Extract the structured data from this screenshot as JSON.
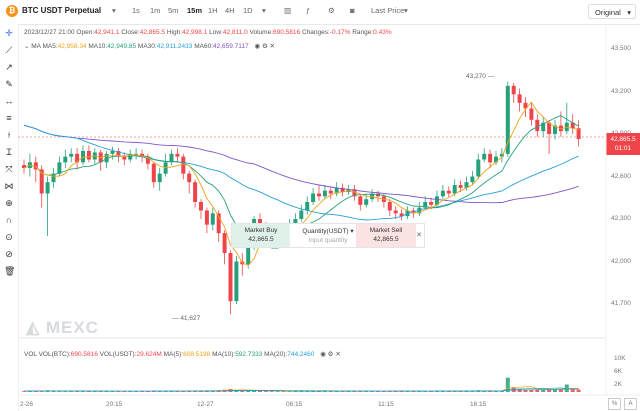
{
  "toolbar": {
    "symbol": "BTC USDT Perpetual",
    "coin_glyph": "₿",
    "intervals": [
      "1s",
      "1m",
      "5m",
      "15m",
      "1H",
      "4H",
      "1D"
    ],
    "active_interval": "15m",
    "last_price_label": "Last Price",
    "original_label": "Original"
  },
  "info": {
    "datetime": "2023/12/27 21:00",
    "open_label": "Open:",
    "open": "42,941.1",
    "close_label": "Close:",
    "close": "42,865.5",
    "high_label": "High:",
    "high": "42,998.1",
    "low_label": "Low:",
    "low": "42,811.0",
    "volume_label": "Volume:",
    "volume": "690.5816",
    "changes_label": "Changes:",
    "changes": "-0.17%",
    "range_label": "Range:",
    "range": "0.43%"
  },
  "ma": {
    "label": "MA",
    "ma5_label": "MA5:",
    "ma5": "42,958.34",
    "ma10_label": "MA10:",
    "ma10": "42,949.85",
    "ma30_label": "MA30:",
    "ma30": "42,911.2433",
    "ma60_label": "MA60:",
    "ma60": "42,659.7117"
  },
  "price_axis": [
    "43,500",
    "43,200",
    "42,900",
    "42,600",
    "42,300",
    "42,000",
    "41,700"
  ],
  "price_tag": {
    "price": "42,865.5",
    "countdown": "01:01"
  },
  "high_marker": "43,270",
  "low_marker": "41,627",
  "trade_panel": {
    "buy_label": "Market Buy",
    "buy_price": "42,865.5",
    "qty_label": "Quantity(USDT)",
    "qty_placeholder": "Input quantity",
    "sell_label": "Market Sell",
    "sell_price": "42,865.5",
    "close_glyph": "✕"
  },
  "watermark": "MEXC",
  "vol": {
    "label": "VOL",
    "btc_label": "VOL(BTC):",
    "btc": "690.5816",
    "usdt_label": "VOL(USDT):",
    "usdt": "29.624M",
    "ma5_label": "MA(5):",
    "ma5": "608.5198",
    "ma10_label": "MA(10):",
    "ma10": "592.7333",
    "ma20_label": "MA(20):",
    "ma20": "744.2460",
    "axis": [
      "10K",
      "6K",
      "2K"
    ]
  },
  "time_axis": [
    "2-26",
    "20:15",
    "12-27",
    "06:15",
    "11:15",
    "16:15"
  ],
  "colors": {
    "up": "#26a17b",
    "down": "#ef454a",
    "ma5": "#f0a21c",
    "ma10": "#26a17b",
    "ma30": "#27a0d8",
    "ma60": "#7b56c8"
  },
  "icons": [
    "crosshair-icon",
    "trend-line-icon",
    "ray-icon",
    "pen-icon",
    "horizontal-line-icon",
    "fib-icon",
    "brush-icon",
    "text-icon",
    "measure-icon",
    "pattern-icon",
    "zoom-icon",
    "magnet-icon",
    "lock-icon",
    "hide-icon",
    "trash-icon"
  ],
  "candles": [
    [
      42680,
      42660,
      42720,
      42620
    ],
    [
      42660,
      42700,
      42760,
      42600
    ],
    [
      42700,
      42650,
      42740,
      42560
    ],
    [
      42650,
      42480,
      42680,
      42380
    ],
    [
      42480,
      42560,
      42600,
      42180
    ],
    [
      42560,
      42620,
      42660,
      42520
    ],
    [
      42620,
      42700,
      42740,
      42600
    ],
    [
      42700,
      42740,
      42790,
      42660
    ],
    [
      42740,
      42760,
      42800,
      42700
    ],
    [
      42760,
      42700,
      42800,
      42650
    ],
    [
      42700,
      42780,
      42820,
      42680
    ],
    [
      42780,
      42720,
      42820,
      42700
    ],
    [
      42720,
      42770,
      42800,
      42690
    ],
    [
      42770,
      42700,
      42790,
      42640
    ],
    [
      42700,
      42760,
      42780,
      42660
    ],
    [
      42760,
      42780,
      42810,
      42720
    ],
    [
      42780,
      42740,
      42800,
      42700
    ],
    [
      42740,
      42720,
      42770,
      42680
    ],
    [
      42720,
      42760,
      42790,
      42700
    ],
    [
      42760,
      42760,
      42800,
      42720
    ],
    [
      42760,
      42740,
      42790,
      42700
    ],
    [
      42740,
      42690,
      42760,
      42650
    ],
    [
      42690,
      42560,
      42700,
      42520
    ],
    [
      42560,
      42620,
      42660,
      42500
    ],
    [
      42620,
      42700,
      42760,
      42600
    ],
    [
      42700,
      42760,
      42790,
      42680
    ],
    [
      42760,
      42740,
      42800,
      42700
    ],
    [
      42740,
      42620,
      42760,
      42580
    ],
    [
      42620,
      42560,
      42640,
      42480
    ],
    [
      42560,
      42420,
      42580,
      42380
    ],
    [
      42420,
      42360,
      42440,
      42300
    ],
    [
      42360,
      42260,
      42380,
      42200
    ],
    [
      42260,
      42340,
      42380,
      42220
    ],
    [
      42340,
      42200,
      42360,
      42140
    ],
    [
      42200,
      42060,
      42220,
      41980
    ],
    [
      42060,
      41720,
      42080,
      41627
    ],
    [
      41720,
      42000,
      42040,
      41700
    ],
    [
      42000,
      41980,
      42060,
      41900
    ],
    [
      41980,
      42100,
      42140,
      41950
    ],
    [
      42100,
      42300,
      42320,
      42080
    ],
    [
      42300,
      42250,
      42340,
      42200
    ],
    [
      42250,
      42180,
      42280,
      42140
    ],
    [
      42180,
      42160,
      42220,
      42100
    ],
    [
      42160,
      42200,
      42240,
      42140
    ],
    [
      42200,
      42180,
      42230,
      42150
    ],
    [
      42180,
      42260,
      42300,
      42160
    ],
    [
      42260,
      42300,
      42340,
      42240
    ],
    [
      42300,
      42360,
      42400,
      42280
    ],
    [
      42360,
      42420,
      42460,
      42330
    ],
    [
      42420,
      42480,
      42520,
      42400
    ],
    [
      42480,
      42460,
      42540,
      42430
    ],
    [
      42460,
      42500,
      42540,
      42440
    ],
    [
      42500,
      42480,
      42530,
      42440
    ],
    [
      42480,
      42520,
      42560,
      42460
    ],
    [
      42520,
      42490,
      42550,
      42460
    ],
    [
      42490,
      42510,
      42540,
      42470
    ],
    [
      42510,
      42460,
      42540,
      42430
    ],
    [
      42460,
      42400,
      42480,
      42360
    ],
    [
      42400,
      42440,
      42480,
      42380
    ],
    [
      42440,
      42480,
      42510,
      42420
    ],
    [
      42480,
      42460,
      42500,
      42420
    ],
    [
      42460,
      42420,
      42480,
      42380
    ],
    [
      42420,
      42360,
      42440,
      42320
    ],
    [
      42360,
      42340,
      42390,
      42300
    ],
    [
      42340,
      42320,
      42370,
      42290
    ],
    [
      42320,
      42360,
      42390,
      42300
    ],
    [
      42360,
      42340,
      42380,
      42310
    ],
    [
      42340,
      42380,
      42420,
      42320
    ],
    [
      42380,
      42420,
      42460,
      42360
    ],
    [
      42420,
      42400,
      42450,
      42370
    ],
    [
      42400,
      42460,
      42500,
      42380
    ],
    [
      42460,
      42500,
      42540,
      42440
    ],
    [
      42500,
      42480,
      42530,
      42450
    ],
    [
      42480,
      42540,
      42580,
      42460
    ],
    [
      42540,
      42520,
      42570,
      42490
    ],
    [
      42520,
      42560,
      42600,
      42500
    ],
    [
      42560,
      42600,
      42640,
      42540
    ],
    [
      42600,
      42720,
      42760,
      42580
    ],
    [
      42720,
      42760,
      42800,
      42700
    ],
    [
      42760,
      42700,
      42790,
      42660
    ],
    [
      42700,
      42740,
      42780,
      42680
    ],
    [
      42740,
      42760,
      42800,
      42700
    ],
    [
      42760,
      43240,
      43270,
      42740
    ],
    [
      43240,
      43180,
      43260,
      43120
    ],
    [
      43180,
      43120,
      43220,
      43060
    ],
    [
      43120,
      43080,
      43160,
      43020
    ],
    [
      43080,
      43000,
      43120,
      42960
    ],
    [
      43000,
      42920,
      43040,
      42880
    ],
    [
      42920,
      42980,
      43020,
      42880
    ],
    [
      42980,
      42900,
      43000,
      42760
    ],
    [
      42900,
      42960,
      43000,
      42860
    ],
    [
      42960,
      42920,
      43060,
      42880
    ],
    [
      42920,
      42980,
      43120,
      42900
    ],
    [
      42980,
      42941,
      43040,
      42900
    ],
    [
      42941,
      42865,
      42998,
      42811
    ]
  ],
  "volumes": [
    240,
    380,
    260,
    420,
    520,
    300,
    240,
    260,
    220,
    240,
    260,
    230,
    220,
    260,
    240,
    250,
    230,
    220,
    240,
    230,
    240,
    260,
    420,
    300,
    260,
    240,
    220,
    300,
    340,
    420,
    380,
    450,
    300,
    520,
    680,
    900,
    600,
    380,
    320,
    560,
    300,
    260,
    240,
    230,
    240,
    260,
    280,
    300,
    320,
    360,
    300,
    280,
    260,
    270,
    250,
    260,
    280,
    320,
    260,
    240,
    250,
    280,
    320,
    300,
    260,
    260,
    240,
    280,
    300,
    260,
    300,
    340,
    280,
    320,
    260,
    300,
    340,
    520,
    380,
    300,
    280,
    300,
    4200,
    1400,
    900,
    700,
    720,
    800,
    600,
    900,
    700,
    880,
    2200,
    760,
    690
  ]
}
